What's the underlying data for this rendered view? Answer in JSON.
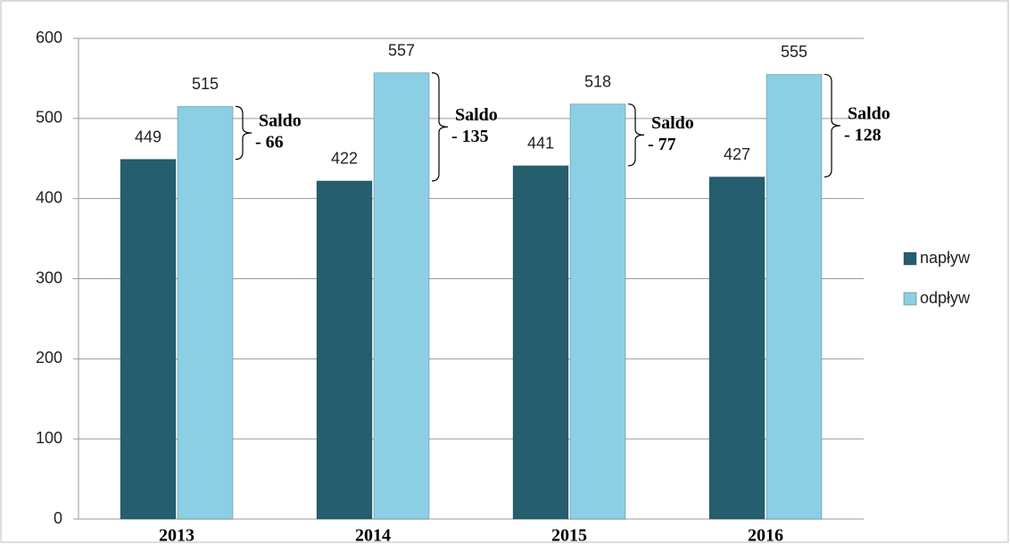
{
  "chart_data": {
    "type": "bar",
    "categories": [
      "2013",
      "2014",
      "2015",
      "2016"
    ],
    "series": [
      {
        "name": "napływ",
        "color": "#255e6e",
        "values": [
          449,
          422,
          441,
          427
        ]
      },
      {
        "name": "odpływ",
        "color": "#8ccfe4",
        "values": [
          515,
          557,
          518,
          555
        ]
      }
    ],
    "annotations": [
      [
        "Saldo",
        "- 66"
      ],
      [
        "Saldo",
        "- 135"
      ],
      [
        "Saldo",
        "- 77"
      ],
      [
        "Saldo",
        "- 128"
      ]
    ],
    "ylim": [
      0,
      600
    ],
    "yticks": [
      0,
      100,
      200,
      300,
      400,
      500,
      600
    ],
    "grid": true,
    "legend": "right"
  }
}
